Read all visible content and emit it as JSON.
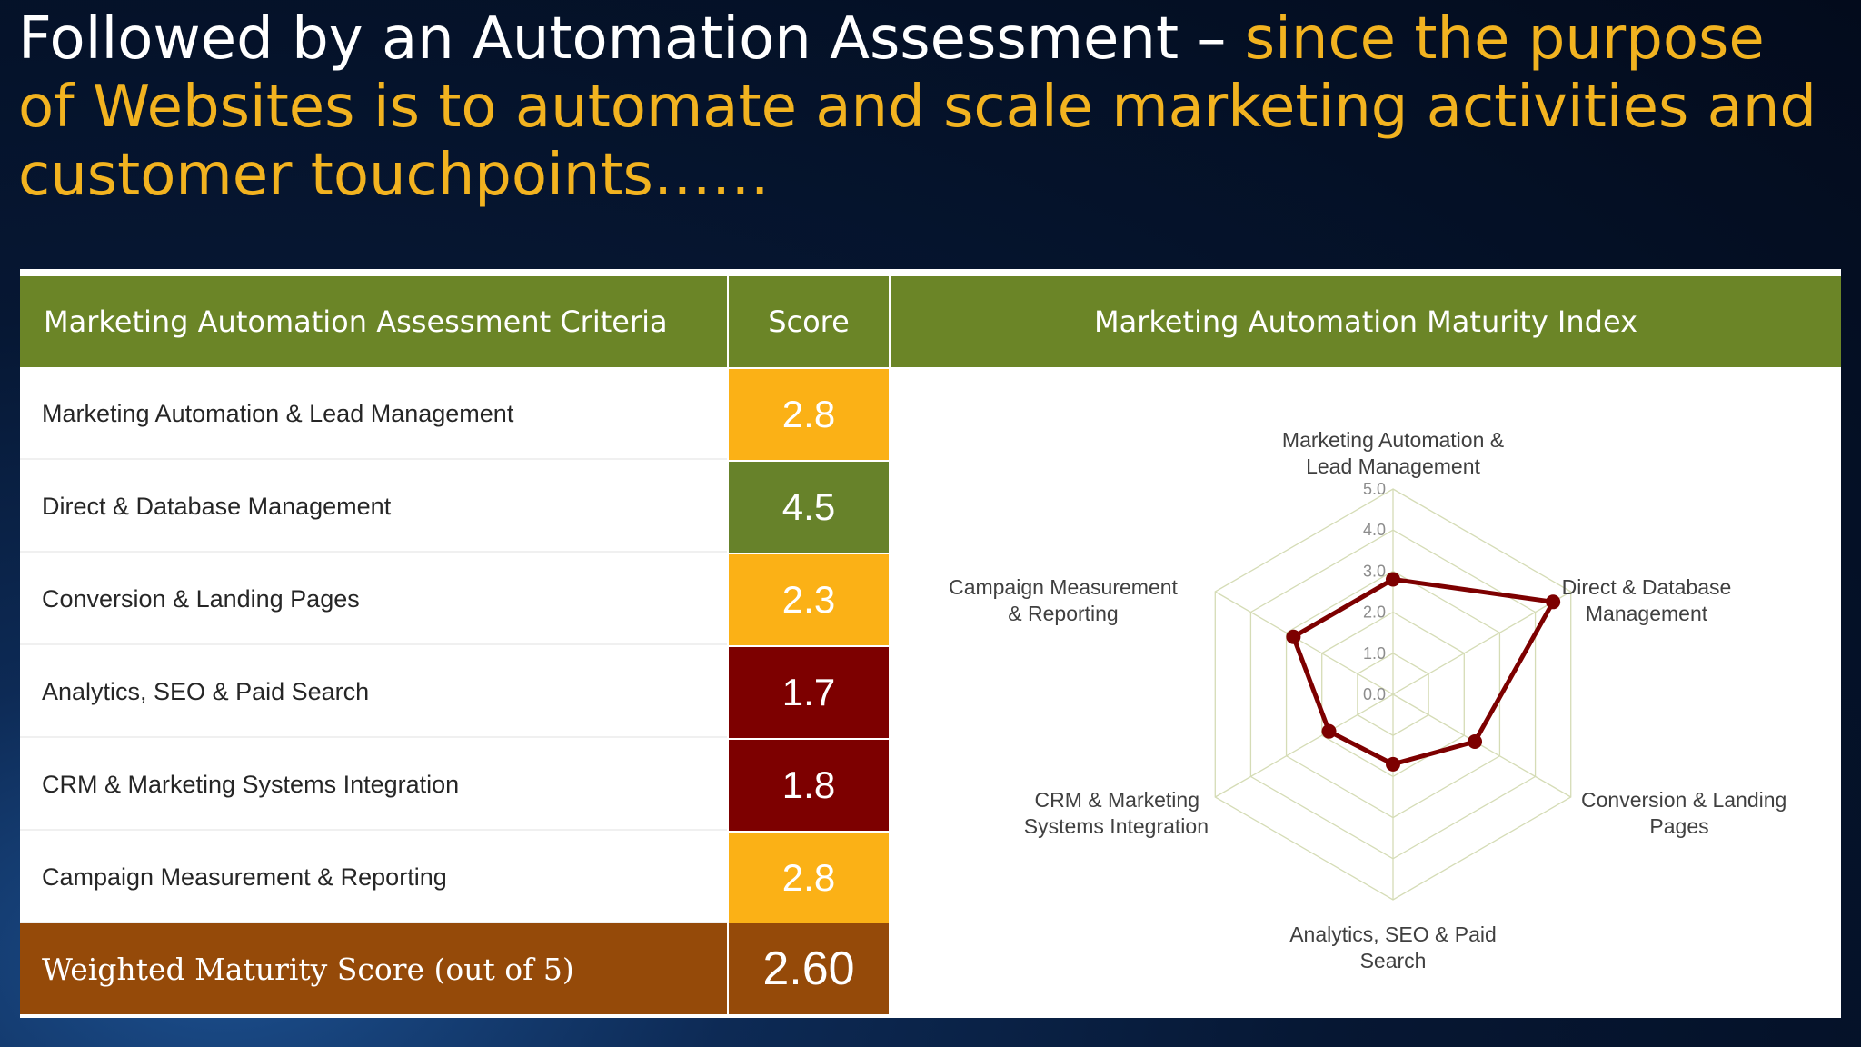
{
  "title": {
    "part1": "Followed by an Automation Assessment – ",
    "part2": "since the purpose of Websites is to automate and scale marketing activities and customer touchpoints……"
  },
  "table": {
    "header_criteria": "Marketing Automation Assessment Criteria",
    "header_score": "Score",
    "header_index": "Marketing Automation Maturity Index",
    "rows": [
      {
        "criteria": "Marketing Automation & Lead Management",
        "score": "2.8",
        "color": "#fbb116"
      },
      {
        "criteria": "Direct & Database Management",
        "score": "4.5",
        "color": "#67822a"
      },
      {
        "criteria": "Conversion & Landing Pages",
        "score": "2.3",
        "color": "#fbb116"
      },
      {
        "criteria": "Analytics, SEO & Paid Search",
        "score": "1.7",
        "color": "#7d0000"
      },
      {
        "criteria": "CRM & Marketing Systems Integration",
        "score": "1.8",
        "color": "#7d0000"
      },
      {
        "criteria": "Campaign Measurement &  Reporting",
        "score": "2.8",
        "color": "#fbb116"
      }
    ],
    "total_label": "Weighted Maturity Score (out of 5)",
    "total_value": "2.60"
  },
  "chart_data": {
    "type": "radar",
    "axes": [
      {
        "label": [
          "Marketing Automation &",
          "Lead Management"
        ],
        "value": 2.8
      },
      {
        "label": [
          "Direct & Database",
          "Management"
        ],
        "value": 4.5
      },
      {
        "label": [
          "Conversion & Landing",
          "Pages"
        ],
        "value": 2.3
      },
      {
        "label": [
          "Analytics, SEO & Paid",
          "Search"
        ],
        "value": 1.7
      },
      {
        "label": [
          "CRM & Marketing",
          "Systems Integration"
        ],
        "value": 1.8
      },
      {
        "label": [
          "Campaign Measurement",
          "&  Reporting"
        ],
        "value": 2.8
      }
    ],
    "range": [
      0,
      5
    ],
    "ticks": [
      "0.0",
      "1.0",
      "2.0",
      "3.0",
      "4.0",
      "5.0"
    ],
    "series_color": "#7d0000",
    "grid_color": "#d5dcb6"
  }
}
